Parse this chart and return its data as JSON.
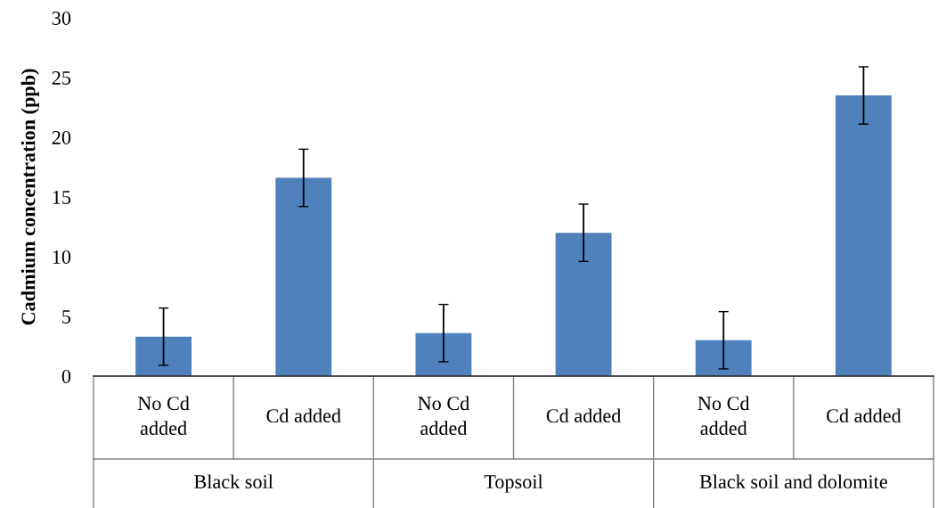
{
  "chart_data": {
    "type": "bar",
    "ylabel": "Cadmium concentration (ppb)",
    "categories": [
      "No Cd\nadded",
      "Cd added",
      "No Cd\nadded",
      "Cd added",
      "No Cd\nadded",
      "Cd added"
    ],
    "values": [
      3.3,
      16.6,
      3.6,
      12.0,
      3.0,
      23.5
    ],
    "errors": [
      2.4,
      2.4,
      2.4,
      2.4,
      2.4,
      2.4
    ],
    "color": "#4f81bd",
    "annotations": [
      "Black soil",
      "Topsoil",
      "Black soil and dolomite"
    ],
    "ylim": [
      0,
      30
    ],
    "yticks": [
      0,
      5,
      10,
      15,
      20,
      25,
      30
    ],
    "grid": false,
    "legend": false
  }
}
